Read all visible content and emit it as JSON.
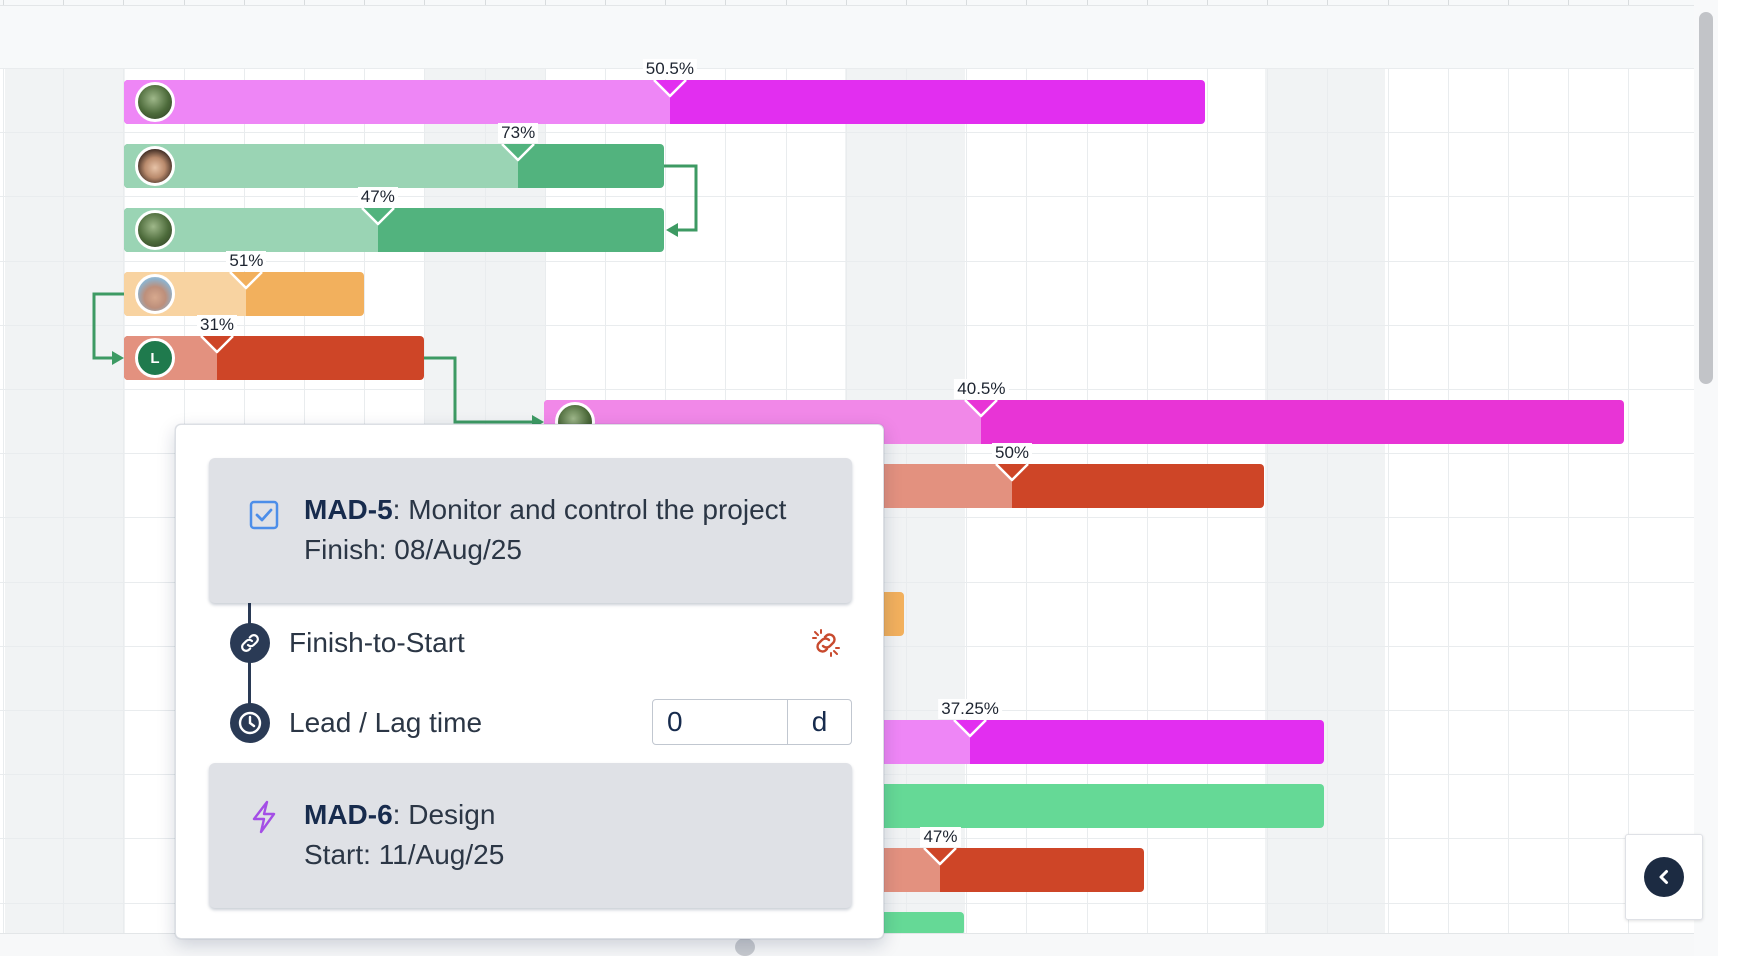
{
  "gantt": {
    "bars": [
      {
        "name": "bar-row-1",
        "percent_label": "50.5%",
        "progress": 0.505,
        "color": "#e22ef0",
        "light": "#ee86f6",
        "avatar": "av-forest",
        "avatar_letter": ""
      },
      {
        "name": "bar-row-2",
        "percent_label": "73%",
        "progress": 0.73,
        "color": "#52b37e",
        "light": "#9ad4b4",
        "avatar": "av-woman",
        "avatar_letter": ""
      },
      {
        "name": "bar-row-3",
        "percent_label": "47%",
        "progress": 0.47,
        "color": "#52b37e",
        "light": "#9ad4b4",
        "avatar": "av-forest",
        "avatar_letter": ""
      },
      {
        "name": "bar-row-4",
        "percent_label": "51%",
        "progress": 0.51,
        "color": "#f2b05d",
        "light": "#f8d3a1",
        "avatar": "av-beach",
        "avatar_letter": ""
      },
      {
        "name": "bar-row-5",
        "percent_label": "31%",
        "progress": 0.31,
        "color": "#ce4527",
        "light": "#e3917f",
        "avatar": "av-letter",
        "avatar_letter": "L"
      },
      {
        "name": "bar-row-6",
        "percent_label": "40.5%",
        "progress": 0.405,
        "color": "#e834d6",
        "light": "#f188e8",
        "avatar": "av-forest",
        "avatar_letter": ""
      },
      {
        "name": "bar-row-7",
        "percent_label": "50%",
        "progress": 0.5,
        "color": "#ce4527",
        "light": "#e3917f",
        "avatar": "",
        "avatar_letter": ""
      },
      {
        "name": "bar-row-8",
        "percent_label": "",
        "progress": 0,
        "color": "#f2b05d",
        "light": "#f8d3a1",
        "avatar": "",
        "avatar_letter": ""
      },
      {
        "name": "bar-row-9",
        "percent_label": "37.25%",
        "progress": 0.3725,
        "color": "#e22ef0",
        "light": "#ee86f6",
        "avatar": "",
        "avatar_letter": ""
      },
      {
        "name": "bar-row-10",
        "percent_label": "",
        "progress": 0,
        "color": "#65d996",
        "light": "#65d996",
        "avatar": "",
        "avatar_letter": ""
      },
      {
        "name": "bar-row-11",
        "percent_label": "47%",
        "progress": 0.47,
        "color": "#ce4527",
        "light": "#e3917f",
        "avatar": "",
        "avatar_letter": ""
      },
      {
        "name": "bar-row-12",
        "percent_label": "",
        "progress": 0,
        "color": "#65d996",
        "light": "#65d996",
        "avatar": "",
        "avatar_letter": ""
      }
    ],
    "link_color": "#3d9a63"
  },
  "popover": {
    "predecessor": {
      "key": "MAD-5",
      "title": "Monitor and control the project",
      "date_text": "Finish: 08/Aug/25",
      "icon": "checkbox-task-icon"
    },
    "dependency_type": "Finish-to-Start",
    "lag_label": "Lead / Lag time",
    "lag_value": "0",
    "lag_unit": "d",
    "successor": {
      "key": "MAD-6",
      "title": "Design",
      "date_text": "Start: 11/Aug/25",
      "icon": "lightning-icon"
    }
  }
}
